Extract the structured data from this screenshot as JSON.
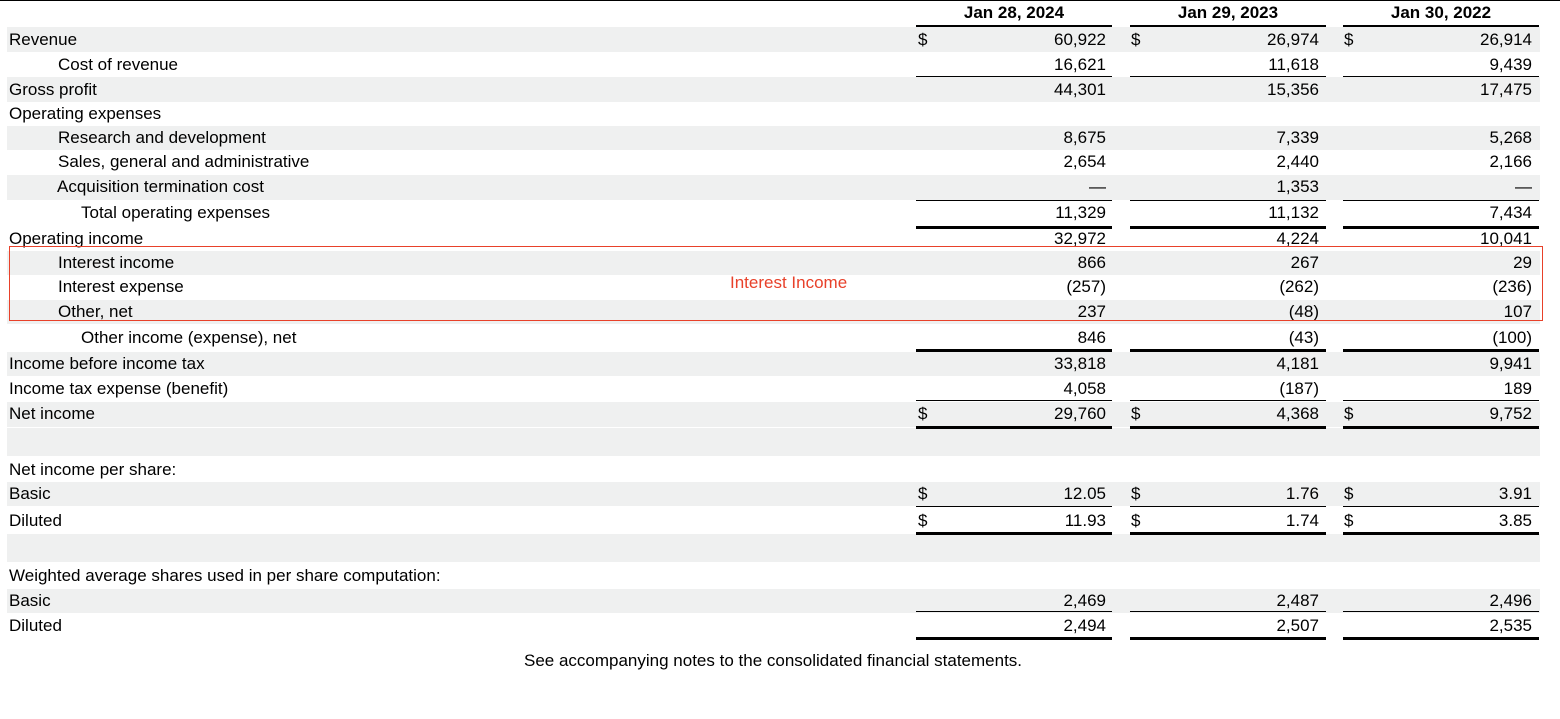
{
  "headers": [
    "Jan 28, 2024",
    "Jan 29, 2023",
    "Jan 30, 2022"
  ],
  "currency_symbol": "$",
  "rows": [
    {
      "label": "Revenue",
      "values": [
        "60,922",
        "26,974",
        "26,914"
      ]
    },
    {
      "label": "Cost of revenue",
      "values": [
        "16,621",
        "11,618",
        "9,439"
      ]
    },
    {
      "label": "Gross profit",
      "values": [
        "44,301",
        "15,356",
        "17,475"
      ]
    },
    {
      "label": "Operating expenses",
      "values": []
    },
    {
      "label": "Research and development",
      "values": [
        "8,675",
        "7,339",
        "5,268"
      ]
    },
    {
      "label": "Sales, general and administrative",
      "values": [
        "2,654",
        "2,440",
        "2,166"
      ]
    },
    {
      "label": "Acquisition termination cost",
      "values": [
        "—",
        "1,353",
        "—"
      ]
    },
    {
      "label": "Total operating expenses",
      "values": [
        "11,329",
        "11,132",
        "7,434"
      ]
    },
    {
      "label": "Operating income",
      "values": [
        "32,972",
        "4,224",
        "10,041"
      ]
    },
    {
      "label": "Interest income",
      "values": [
        "866",
        "267",
        "29"
      ]
    },
    {
      "label": "Interest expense",
      "values": [
        "(257)",
        "(262)",
        "(236)"
      ]
    },
    {
      "label": "Other, net",
      "values": [
        "237",
        "(48)",
        "107"
      ]
    },
    {
      "label": "Other income (expense), net",
      "values": [
        "846",
        "(43)",
        "(100)"
      ]
    },
    {
      "label": "Income before income tax",
      "values": [
        "33,818",
        "4,181",
        "9,941"
      ]
    },
    {
      "label": "Income tax expense (benefit)",
      "values": [
        "4,058",
        "(187)",
        "189"
      ]
    },
    {
      "label": "Net income",
      "values": [
        "29,760",
        "4,368",
        "9,752"
      ]
    },
    {
      "label": "Net income per share:",
      "values": []
    },
    {
      "label": "Basic",
      "values": [
        "12.05",
        "1.76",
        "3.91"
      ]
    },
    {
      "label": "Diluted",
      "values": [
        "11.93",
        "1.74",
        "3.85"
      ]
    },
    {
      "label": "Weighted average shares used in per share computation:",
      "values": []
    },
    {
      "label": "Basic",
      "values": [
        "2,469",
        "2,487",
        "2,496"
      ]
    },
    {
      "label": "Diluted",
      "values": [
        "2,494",
        "2,507",
        "2,535"
      ]
    }
  ],
  "annotation": {
    "label": "Interest Income"
  },
  "footer": "See accompanying notes to the consolidated financial statements."
}
